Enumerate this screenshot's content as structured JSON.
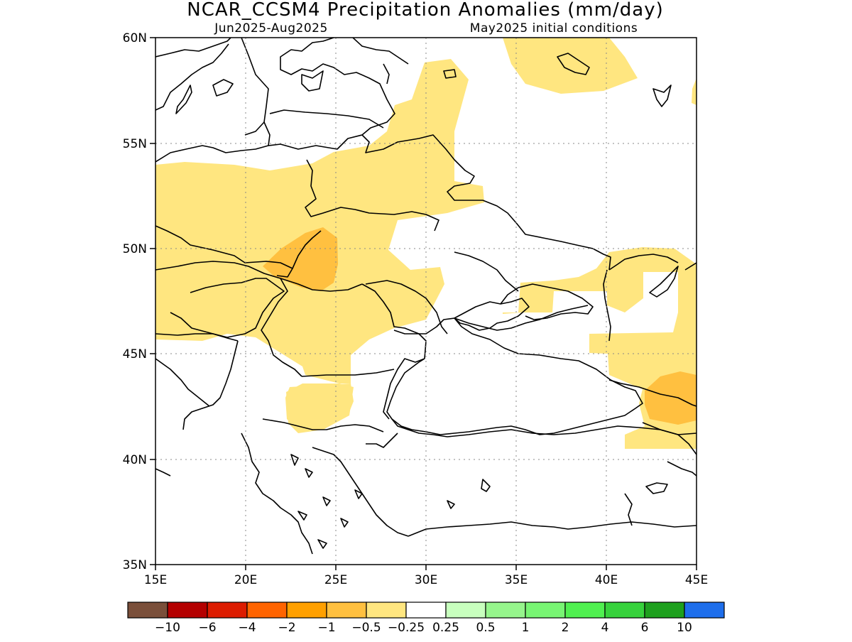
{
  "title": "NCAR_CCSM4 Precipitation Anomalies (mm/day)",
  "subtitle_left": "Jun2025-Aug2025",
  "subtitle_right": "May2025 initial conditions",
  "map": {
    "lon_range": [
      15,
      45
    ],
    "lat_range": [
      35,
      60
    ],
    "lon_ticks": [
      "15E",
      "20E",
      "25E",
      "30E",
      "35E",
      "40E",
      "45E"
    ],
    "lat_ticks": [
      "35N",
      "40N",
      "45N",
      "50N",
      "55N",
      "60N"
    ],
    "grid": true,
    "regions": [
      {
        "name": "central-europe-poland-ukraine-anomaly",
        "class": "-0.5 to -0.25",
        "color": "#ffe680"
      },
      {
        "name": "carpathian-core-anomaly",
        "class": "-1 to -0.5",
        "color": "#ffc040"
      },
      {
        "name": "balkans-bulgaria-anomaly",
        "class": "-0.5 to -0.25",
        "color": "#ffe680"
      },
      {
        "name": "baltic-northeast-anomaly",
        "class": "-0.5 to -0.25",
        "color": "#ffe680"
      },
      {
        "name": "lower-volga-caucasus-anomaly",
        "class": "-0.5 to -0.25",
        "color": "#ffe680"
      },
      {
        "name": "caucasus-core-anomaly",
        "class": "-1 to -0.5",
        "color": "#ffc040"
      }
    ]
  },
  "colorbar": {
    "colors": [
      "#7a4f3a",
      "#b40000",
      "#dc1c00",
      "#ff6400",
      "#ffa000",
      "#ffc040",
      "#ffe680",
      "#ffffff",
      "#c8ffbe",
      "#96f58c",
      "#78f573",
      "#50f050",
      "#37d23c",
      "#1ea01e",
      "#1e6eeb"
    ],
    "labels": [
      "-10",
      "-6",
      "-4",
      "-2",
      "-1",
      "-0.5",
      "-0.25",
      "0.25",
      "0.5",
      "1",
      "2",
      "4",
      "6",
      "10"
    ]
  }
}
